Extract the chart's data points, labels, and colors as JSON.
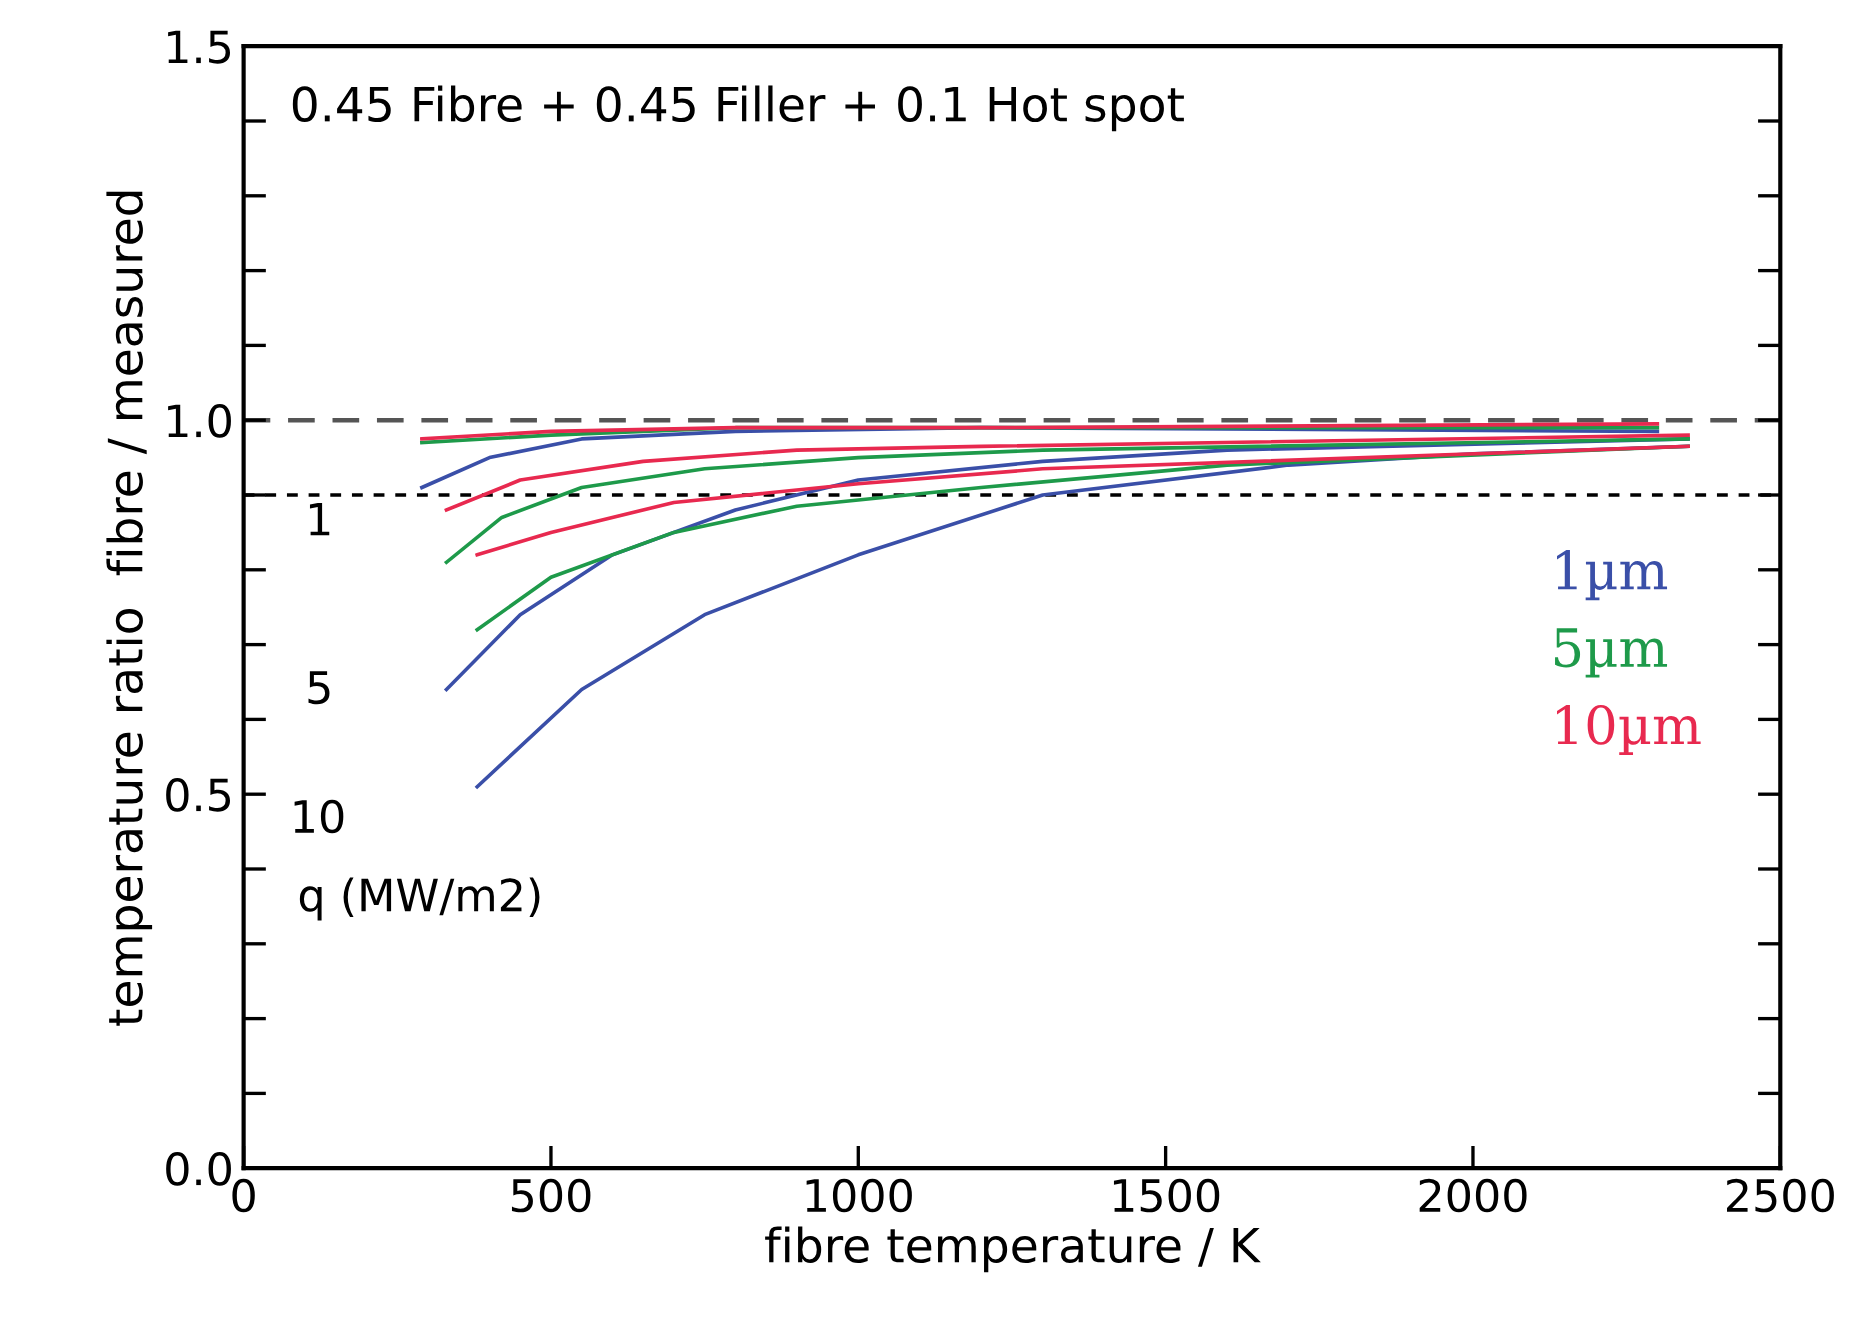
{
  "chart_data": {
    "type": "line",
    "title": "0.45 Fibre + 0.45 Filler + 0.1 Hot spot",
    "xlabel": "fibre temperature / K",
    "ylabel": "temperature ratio  fibre / measured",
    "xlim": [
      0,
      2500
    ],
    "xticks": [
      0,
      500,
      1000,
      1500,
      2000,
      2500
    ],
    "ylim": [
      0,
      1.5
    ],
    "yticks": [
      {
        "value": 0,
        "label": "0.0"
      },
      0.5,
      {
        "value": 1,
        "label": "1.0"
      },
      1.5,
      {
        "value": 0.1,
        "label": null
      },
      {
        "value": 0.2,
        "label": null
      },
      {
        "value": 0.3,
        "label": null
      },
      {
        "value": 0.4,
        "label": null
      },
      {
        "value": 0.6,
        "label": null
      },
      {
        "value": 0.7,
        "label": null
      },
      {
        "value": 0.8,
        "label": null
      },
      {
        "value": 0.9,
        "label": null
      },
      {
        "value": 1.1,
        "label": null
      },
      {
        "value": 1.2,
        "label": null
      },
      {
        "value": 1.3,
        "label": null
      },
      {
        "value": 1.4,
        "label": null
      }
    ],
    "grid": false,
    "legend": "right",
    "marker": "none",
    "line_style": "solid",
    "ref_lines": [
      {
        "axis": "y",
        "value": 1.0,
        "color": "#555555",
        "line_style": "dashed"
      },
      {
        "axis": "y",
        "value": 0.9,
        "color": "#000000",
        "line_style": "dotted"
      }
    ],
    "annotations": [
      "1",
      "5",
      "10",
      "q (MW/m2)"
    ],
    "series": [
      {
        "name": "1µm",
        "color": "#3a4fa8",
        "x": [
          290,
          400,
          550,
          800,
          1200,
          2300
        ],
        "values": [
          0.91,
          0.95,
          0.975,
          0.985,
          0.99,
          0.985
        ]
      },
      {
        "color": "#3a4fa8",
        "x": [
          330,
          450,
          600,
          800,
          1000,
          1300,
          1600,
          2350
        ],
        "values": [
          0.64,
          0.74,
          0.82,
          0.88,
          0.92,
          0.945,
          0.96,
          0.975
        ]
      },
      {
        "color": "#3a4fa8",
        "x": [
          380,
          550,
          750,
          1000,
          1300,
          1700,
          2000,
          2350
        ],
        "values": [
          0.51,
          0.64,
          0.74,
          0.82,
          0.9,
          0.94,
          0.955,
          0.965
        ]
      },
      {
        "name": "5µm",
        "color": "#1e9a4a",
        "x": [
          290,
          500,
          800,
          1200,
          2300
        ],
        "values": [
          0.97,
          0.98,
          0.99,
          0.99,
          0.99
        ]
      },
      {
        "color": "#1e9a4a",
        "x": [
          330,
          420,
          550,
          750,
          1000,
          1300,
          2350
        ],
        "values": [
          0.81,
          0.87,
          0.91,
          0.935,
          0.95,
          0.96,
          0.975
        ]
      },
      {
        "color": "#1e9a4a",
        "x": [
          380,
          500,
          700,
          900,
          1200,
          1600,
          2350
        ],
        "values": [
          0.72,
          0.79,
          0.85,
          0.885,
          0.91,
          0.94,
          0.965
        ]
      },
      {
        "name": "10µm",
        "color": "#e8294f",
        "x": [
          290,
          500,
          800,
          1200,
          2300
        ],
        "values": [
          0.975,
          0.985,
          0.99,
          0.99,
          0.995
        ]
      },
      {
        "color": "#e8294f",
        "x": [
          330,
          450,
          650,
          900,
          1200,
          2350
        ],
        "values": [
          0.88,
          0.92,
          0.945,
          0.96,
          0.965,
          0.98
        ]
      },
      {
        "color": "#e8294f",
        "x": [
          380,
          500,
          700,
          1000,
          1300,
          2350
        ],
        "values": [
          0.82,
          0.85,
          0.89,
          0.915,
          0.935,
          0.965
        ]
      }
    ]
  }
}
